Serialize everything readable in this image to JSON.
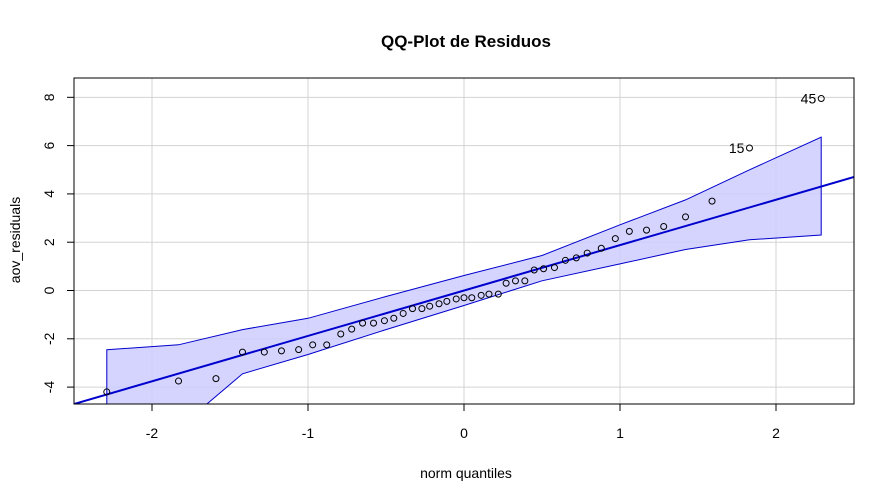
{
  "chart_data": {
    "type": "scatter",
    "title": "QQ-Plot de Residuos",
    "xlabel": "norm quantiles",
    "ylabel": "aov_residuals",
    "xlim": [
      -2.5,
      2.5
    ],
    "ylim": [
      -4.7,
      8.8
    ],
    "x_ticks": [
      -2,
      -1,
      0,
      1,
      2
    ],
    "y_ticks": [
      -4,
      -2,
      0,
      2,
      4,
      6,
      8
    ],
    "x_tick_labels": [
      "-2",
      "-1",
      "0",
      "1",
      "2"
    ],
    "y_tick_labels": [
      "-4",
      "-2",
      "0",
      "2",
      "4",
      "6",
      "8"
    ],
    "grid": true,
    "colors": {
      "line": "#0000cd",
      "band_fill": "#ccccff",
      "band_edge": "#0000cd",
      "points": "#000000",
      "grid": "#d3d3d3"
    },
    "reference_line": {
      "intercept": 0.0,
      "slope": 1.88
    },
    "confidence_band": {
      "x": [
        -2.29,
        -1.83,
        -1.42,
        -1.0,
        -0.5,
        0.0,
        0.5,
        1.0,
        1.42,
        1.83,
        2.29
      ],
      "upper": [
        -2.45,
        -2.25,
        -1.62,
        -1.15,
        -0.25,
        0.62,
        1.45,
        2.72,
        3.75,
        5.0,
        6.35
      ],
      "lower": [
        -7.5,
        -5.7,
        -3.45,
        -2.65,
        -1.62,
        -0.62,
        0.4,
        1.1,
        1.7,
        2.1,
        2.3
      ]
    },
    "points": [
      {
        "x": -2.29,
        "y": -4.2
      },
      {
        "x": -1.83,
        "y": -3.75
      },
      {
        "x": -1.59,
        "y": -3.65
      },
      {
        "x": -1.42,
        "y": -2.55
      },
      {
        "x": -1.28,
        "y": -2.55
      },
      {
        "x": -1.17,
        "y": -2.5
      },
      {
        "x": -1.06,
        "y": -2.45
      },
      {
        "x": -0.97,
        "y": -2.25
      },
      {
        "x": -0.88,
        "y": -2.25
      },
      {
        "x": -0.79,
        "y": -1.8
      },
      {
        "x": -0.72,
        "y": -1.6
      },
      {
        "x": -0.65,
        "y": -1.35
      },
      {
        "x": -0.58,
        "y": -1.35
      },
      {
        "x": -0.51,
        "y": -1.25
      },
      {
        "x": -0.45,
        "y": -1.15
      },
      {
        "x": -0.39,
        "y": -0.95
      },
      {
        "x": -0.33,
        "y": -0.75
      },
      {
        "x": -0.27,
        "y": -0.75
      },
      {
        "x": -0.22,
        "y": -0.65
      },
      {
        "x": -0.16,
        "y": -0.55
      },
      {
        "x": -0.11,
        "y": -0.45
      },
      {
        "x": -0.05,
        "y": -0.35
      },
      {
        "x": 0.0,
        "y": -0.3
      },
      {
        "x": 0.05,
        "y": -0.3
      },
      {
        "x": 0.11,
        "y": -0.2
      },
      {
        "x": 0.16,
        "y": -0.15
      },
      {
        "x": 0.22,
        "y": -0.15
      },
      {
        "x": 0.27,
        "y": 0.3
      },
      {
        "x": 0.33,
        "y": 0.4
      },
      {
        "x": 0.39,
        "y": 0.4
      },
      {
        "x": 0.45,
        "y": 0.85
      },
      {
        "x": 0.51,
        "y": 0.9
      },
      {
        "x": 0.58,
        "y": 0.95
      },
      {
        "x": 0.65,
        "y": 1.25
      },
      {
        "x": 0.72,
        "y": 1.35
      },
      {
        "x": 0.79,
        "y": 1.55
      },
      {
        "x": 0.88,
        "y": 1.75
      },
      {
        "x": 0.97,
        "y": 2.15
      },
      {
        "x": 1.06,
        "y": 2.45
      },
      {
        "x": 1.17,
        "y": 2.5
      },
      {
        "x": 1.28,
        "y": 2.65
      },
      {
        "x": 1.42,
        "y": 3.05
      },
      {
        "x": 1.59,
        "y": 3.7
      },
      {
        "x": 1.83,
        "y": 5.9,
        "label": "15"
      },
      {
        "x": 2.29,
        "y": 7.95,
        "label": "45"
      }
    ]
  }
}
